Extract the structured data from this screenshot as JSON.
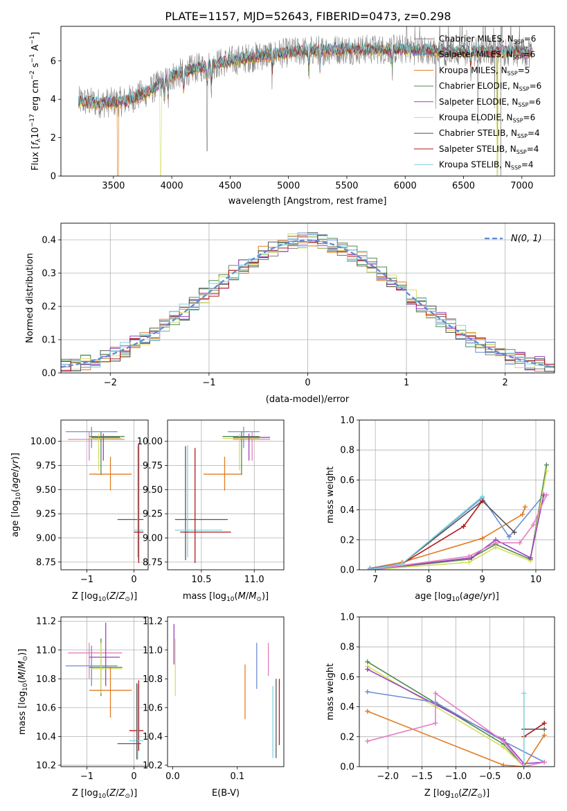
{
  "figure_title": "PLATE=1157, MJD=52643, FIBERID=0473, z=0.298",
  "colors": {
    "Chabrier MILES": "#7f7f7f",
    "Salpeter MILES": "#6b8ed6",
    "Kroupa MILES": "#e07b22",
    "Chabrier ELODIE": "#4e8a4e",
    "Salpeter ELODIE": "#9b3fc0",
    "Kroupa ELODIE": "#d4de5a",
    "Chabrier STELIB": "#555555",
    "Salpeter STELIB": "#b5161c",
    "Kroupa STELIB": "#7fd3db",
    "pink": "#e37fbf",
    "gauss": "#5b8bd6",
    "grid": "#b0b0b0"
  },
  "chart_data": [
    {
      "id": "spectrum",
      "type": "line",
      "xlabel": "wavelength [Angstrom, rest frame]",
      "ylabel": "Flux [f_λ 10^-17 erg cm^-2 s^-1 A^-1]",
      "xlim": [
        3050,
        7280
      ],
      "ylim": [
        0,
        7.8
      ],
      "xticks": [
        3500,
        4000,
        4500,
        5000,
        5500,
        6000,
        6500,
        7000
      ],
      "yticks": [
        0,
        2,
        4,
        6
      ],
      "grid": false,
      "legend_position": "right",
      "legend": [
        {
          "name": "Chabrier MILES",
          "ssp": "6"
        },
        {
          "name": "Salpeter MILES",
          "ssp": "6"
        },
        {
          "name": "Kroupa MILES",
          "ssp": "5"
        },
        {
          "name": "Chabrier ELODIE",
          "ssp": "6"
        },
        {
          "name": "Salpeter ELODIE",
          "ssp": "6"
        },
        {
          "name": "Kroupa ELODIE",
          "ssp": "6"
        },
        {
          "name": "Chabrier STELIB",
          "ssp": "4"
        },
        {
          "name": "Salpeter STELIB",
          "ssp": "4"
        },
        {
          "name": "Kroupa STELIB",
          "ssp": "4"
        }
      ],
      "continuum": {
        "x": [
          3200,
          3400,
          3600,
          3800,
          4000,
          4200,
          4500,
          4800,
          5100,
          5400,
          5700,
          6000,
          6300,
          6600,
          6900,
          7100
        ],
        "y": [
          3.9,
          3.8,
          3.9,
          4.4,
          5.2,
          5.6,
          6.0,
          6.3,
          6.5,
          6.6,
          6.6,
          6.6,
          6.5,
          6.5,
          6.5,
          6.4
        ]
      }
    },
    {
      "id": "residuals",
      "type": "line",
      "xlabel": "(data-model)/error",
      "ylabel": "Normed distribution",
      "xlim": [
        -2.5,
        2.5
      ],
      "ylim": [
        0,
        0.45
      ],
      "xticks": [
        -2,
        -1,
        0,
        1,
        2
      ],
      "yticks": [
        0.0,
        0.1,
        0.2,
        0.3,
        0.4
      ],
      "grid": true,
      "legend_position": "top-right",
      "gauss_label": "N(0,1)"
    },
    {
      "id": "age_vs_Z",
      "type": "scatter",
      "xlabel": "Z [log10(Z/Z_sun)]",
      "ylabel": "age  [log10(age/yr)]",
      "xlim": [
        -1.55,
        0.3
      ],
      "ylim": [
        8.67,
        10.22
      ],
      "xticks": [
        -1,
        0
      ],
      "yticks": [
        8.75,
        9.0,
        9.25,
        9.5,
        9.75,
        10.0
      ],
      "grid": true,
      "points": [
        {
          "c": "#6b8ed6",
          "x": -0.9,
          "xe": [
            -1.45,
            -0.35
          ],
          "y": 10.1,
          "ye": [
            9.93,
            10.15
          ]
        },
        {
          "c": "#e37fbf",
          "x": -0.95,
          "xe": [
            -1.4,
            -0.2
          ],
          "y": 10.02,
          "ye": [
            9.8,
            10.1
          ]
        },
        {
          "c": "#4e8a4e",
          "x": -0.7,
          "xe": [
            -0.95,
            -0.2
          ],
          "y": 10.05,
          "ye": [
            9.65,
            10.1
          ]
        },
        {
          "c": "#d4de5a",
          "x": -0.75,
          "xe": [
            -0.95,
            -0.25
          ],
          "y": 10.03,
          "ye": [
            9.7,
            10.08
          ]
        },
        {
          "c": "#9b3fc0",
          "x": -0.65,
          "xe": [
            -0.9,
            -0.3
          ],
          "y": 10.04,
          "ye": [
            9.8,
            10.08
          ]
        },
        {
          "c": "#e07b22",
          "x": -0.5,
          "xe": [
            -0.95,
            -0.05
          ],
          "y": 9.66,
          "ye": [
            9.49,
            9.84
          ]
        },
        {
          "c": "#555555",
          "x": 0.1,
          "xe": [
            -0.35,
            0.2
          ],
          "y": 9.19,
          "ye": [
            8.77,
            9.95
          ]
        },
        {
          "c": "#7fd3db",
          "x": 0.08,
          "xe": [
            0.0,
            0.2
          ],
          "y": 9.08,
          "ye": [
            8.8,
            9.96
          ]
        },
        {
          "c": "#b5161c",
          "x": 0.1,
          "xe": [
            0.0,
            0.2
          ],
          "y": 9.06,
          "ye": [
            8.74,
            9.97
          ]
        }
      ]
    },
    {
      "id": "age_vs_mass",
      "type": "scatter",
      "xlabel": "mass [log10(M/M_sun)]",
      "ylabel": "",
      "xlim": [
        10.18,
        11.28
      ],
      "ylim": [
        8.67,
        10.22
      ],
      "xticks": [
        10.5,
        11.0
      ],
      "yticks": [
        8.75,
        9.0,
        9.25,
        9.5,
        9.75,
        10.0
      ],
      "grid": true,
      "points": [
        {
          "c": "#6b8ed6",
          "x": 10.9,
          "xe": [
            10.75,
            11.05
          ],
          "y": 10.1,
          "ye": [
            9.93,
            10.15
          ]
        },
        {
          "c": "#e37fbf",
          "x": 10.98,
          "xe": [
            10.8,
            11.15
          ],
          "y": 10.02,
          "ye": [
            9.8,
            10.1
          ]
        },
        {
          "c": "#4e8a4e",
          "x": 10.88,
          "xe": [
            10.7,
            11.05
          ],
          "y": 10.05,
          "ye": [
            9.65,
            10.1
          ]
        },
        {
          "c": "#d4de5a",
          "x": 10.86,
          "xe": [
            10.7,
            11.05
          ],
          "y": 10.03,
          "ye": [
            9.7,
            10.08
          ]
        },
        {
          "c": "#9b3fc0",
          "x": 10.95,
          "xe": [
            10.8,
            11.15
          ],
          "y": 10.04,
          "ye": [
            9.8,
            10.08
          ]
        },
        {
          "c": "#e07b22",
          "x": 10.72,
          "xe": [
            10.52,
            10.88
          ],
          "y": 9.66,
          "ye": [
            9.49,
            9.84
          ]
        },
        {
          "c": "#555555",
          "x": 10.35,
          "xe": [
            10.25,
            10.75
          ],
          "y": 9.19,
          "ye": [
            8.77,
            9.95
          ]
        },
        {
          "c": "#7fd3db",
          "x": 10.37,
          "xe": [
            10.25,
            10.7
          ],
          "y": 9.08,
          "ye": [
            8.8,
            9.96
          ]
        },
        {
          "c": "#b5161c",
          "x": 10.44,
          "xe": [
            10.3,
            10.78
          ],
          "y": 9.06,
          "ye": [
            8.74,
            9.93
          ]
        }
      ]
    },
    {
      "id": "mass_weight_vs_age",
      "type": "line",
      "xlabel": "age  [log10(age/yr)]",
      "ylabel": "mass weight",
      "xlim": [
        6.7,
        10.35
      ],
      "ylim": [
        0,
        1.0
      ],
      "xticks": [
        7,
        8,
        9,
        10
      ],
      "yticks": [
        0.0,
        0.2,
        0.4,
        0.6,
        0.8,
        1.0
      ],
      "grid": true,
      "series": [
        {
          "c": "#e07b22",
          "x": [
            6.9,
            7.5,
            9.0,
            9.75,
            9.8
          ],
          "y": [
            0.01,
            0.05,
            0.21,
            0.37,
            0.42
          ]
        },
        {
          "c": "#6b8ed6",
          "x": [
            6.9,
            7.5,
            9.0,
            9.5,
            10.15
          ],
          "y": [
            0.01,
            0.04,
            0.48,
            0.22,
            0.5
          ]
        },
        {
          "c": "#555555",
          "x": [
            6.9,
            7.5,
            9.0,
            9.6
          ],
          "y": [
            0.0,
            0.04,
            0.46,
            0.25
          ]
        },
        {
          "c": "#b5161c",
          "x": [
            6.9,
            7.5,
            8.65,
            9.0
          ],
          "y": [
            0.0,
            0.04,
            0.29,
            0.46
          ]
        },
        {
          "c": "#4e8a4e",
          "x": [
            6.9,
            8.75,
            9.25,
            9.9,
            10.2
          ],
          "y": [
            0.0,
            0.07,
            0.17,
            0.07,
            0.7
          ]
        },
        {
          "c": "#d4de5a",
          "x": [
            6.9,
            8.75,
            9.25,
            9.9,
            10.2
          ],
          "y": [
            0.0,
            0.05,
            0.15,
            0.06,
            0.66
          ]
        },
        {
          "c": "#9b3fc0",
          "x": [
            6.9,
            8.8,
            9.25,
            9.9,
            10.15
          ],
          "y": [
            0.0,
            0.08,
            0.2,
            0.08,
            0.5
          ]
        },
        {
          "c": "#e37fbf",
          "x": [
            6.9,
            8.75,
            9.25,
            9.7,
            9.95,
            10.2
          ],
          "y": [
            0.0,
            0.09,
            0.18,
            0.18,
            0.3,
            0.5
          ]
        },
        {
          "c": "#7fd3db",
          "x": [
            6.9,
            7.5,
            9.0
          ],
          "y": [
            0.0,
            0.04,
            0.49
          ]
        }
      ]
    },
    {
      "id": "mass_vs_Z",
      "type": "scatter",
      "xlabel": "Z [log10(Z/Z_sun)]",
      "ylabel": "mass [log10(M/M_sun)]",
      "xlim": [
        -1.55,
        0.3
      ],
      "ylim": [
        10.19,
        11.23
      ],
      "xticks": [
        -1,
        0
      ],
      "yticks": [
        10.2,
        10.4,
        10.6,
        10.8,
        11.0,
        11.2
      ],
      "grid": true,
      "points": [
        {
          "c": "#6b8ed6",
          "x": -0.9,
          "xe": [
            -1.45,
            -0.35
          ],
          "y": 10.89,
          "ye": [
            10.75,
            11.03
          ]
        },
        {
          "c": "#e37fbf",
          "x": -0.95,
          "xe": [
            -1.4,
            -0.25
          ],
          "y": 10.98,
          "ye": [
            10.8,
            11.05
          ]
        },
        {
          "c": "#9b3fc0",
          "x": -0.6,
          "xe": [
            -0.95,
            -0.3
          ],
          "y": 10.95,
          "ye": [
            10.75,
            11.19
          ]
        },
        {
          "c": "#4e8a4e",
          "x": -0.7,
          "xe": [
            -0.95,
            -0.25
          ],
          "y": 10.88,
          "ye": [
            10.68,
            11.08
          ]
        },
        {
          "c": "#d4de5a",
          "x": -0.7,
          "xe": [
            -0.9,
            -0.25
          ],
          "y": 10.87,
          "ye": [
            10.7,
            11.05
          ]
        },
        {
          "c": "#e07b22",
          "x": -0.5,
          "xe": [
            -0.95,
            -0.05
          ],
          "y": 10.72,
          "ye": [
            10.53,
            10.88
          ]
        },
        {
          "c": "#b5161c",
          "x": 0.1,
          "xe": [
            -0.1,
            0.2
          ],
          "y": 10.44,
          "ye": [
            10.3,
            10.79
          ]
        },
        {
          "c": "#7fd3db",
          "x": 0.08,
          "xe": [
            -0.1,
            0.2
          ],
          "y": 10.37,
          "ye": [
            10.24,
            10.76
          ]
        },
        {
          "c": "#555555",
          "x": 0.06,
          "xe": [
            -0.35,
            0.15
          ],
          "y": 10.35,
          "ye": [
            10.24,
            10.77
          ]
        }
      ]
    },
    {
      "id": "mass_vs_EBV",
      "type": "scatter",
      "xlabel": "E(B-V)",
      "ylabel": "",
      "xlim": [
        -0.008,
        0.172
      ],
      "ylim": [
        10.19,
        11.23
      ],
      "xticks": [
        0.0,
        0.1
      ],
      "yticks": [
        10.2,
        10.4,
        10.6,
        10.8,
        11.0,
        11.2
      ],
      "grid": false,
      "points": [
        {
          "c": "#9b3fc0",
          "x": 0.002,
          "y": 11.04,
          "ye": [
            10.9,
            11.18
          ]
        },
        {
          "c": "#d4de5a",
          "x": 0.004,
          "y": 10.87,
          "ye": [
            10.68,
            11.08
          ]
        },
        {
          "c": "#6b8ed6",
          "x": 0.13,
          "y": 10.88,
          "ye": [
            10.73,
            11.05
          ]
        },
        {
          "c": "#e07b22",
          "x": 0.112,
          "y": 10.72,
          "ye": [
            10.52,
            10.9
          ]
        },
        {
          "c": "#e37fbf",
          "x": 0.148,
          "y": 10.98,
          "ye": [
            10.82,
            11.05
          ]
        },
        {
          "c": "#b5161c",
          "x": 0.165,
          "y": 10.6,
          "ye": [
            10.34,
            10.8
          ]
        },
        {
          "c": "#555555",
          "x": 0.16,
          "y": 10.55,
          "ye": [
            10.25,
            10.8
          ]
        },
        {
          "c": "#7fd3db",
          "x": 0.155,
          "y": 10.45,
          "ye": [
            10.25,
            10.75
          ]
        }
      ]
    },
    {
      "id": "mass_weight_vs_Z",
      "type": "line",
      "xlabel": "Z [log10(Z/Z_sun)]",
      "ylabel": "mass weight",
      "xlim": [
        -2.42,
        0.45
      ],
      "ylim": [
        0,
        1.0
      ],
      "xticks": [
        -2.0,
        -1.5,
        -1.0,
        -0.5,
        0.0
      ],
      "yticks": [
        0.0,
        0.2,
        0.4,
        0.6,
        0.8,
        1.0
      ],
      "grid": true,
      "series": [
        {
          "c": "#4e8a4e",
          "x": [
            -2.3,
            -0.3,
            0.0
          ],
          "y": [
            0.7,
            0.15,
            0.0
          ]
        },
        {
          "c": "#d4de5a",
          "x": [
            -2.3,
            -0.3,
            0.0
          ],
          "y": [
            0.67,
            0.13,
            0.0
          ]
        },
        {
          "c": "#9b3fc0",
          "x": [
            -2.3,
            -0.3,
            0.0,
            0.3
          ],
          "y": [
            0.65,
            0.18,
            0.02,
            0.03
          ]
        },
        {
          "c": "#6b8ed6",
          "x": [
            -2.3,
            -1.3,
            -0.3,
            0.3
          ],
          "y": [
            0.5,
            0.43,
            0.17,
            0.03
          ]
        },
        {
          "c": "#e07b22",
          "x": [
            -2.3,
            -0.3,
            0.0,
            0.3
          ],
          "y": [
            0.37,
            0.01,
            0.0,
            0.21
          ]
        },
        {
          "c": "#e37fbf",
          "x": [
            -2.3,
            -1.3,
            -1.3,
            -0.3,
            0.0,
            0.3
          ],
          "y": [
            0.17,
            0.29,
            0.49,
            0.17,
            0.0,
            0.03
          ]
        },
        {
          "c": "#b5161c",
          "x": [
            0.0,
            0.3
          ],
          "y": [
            0.2,
            0.29
          ]
        },
        {
          "c": "#555555",
          "x": [
            0.0,
            0.3
          ],
          "y": [
            0.25,
            0.25
          ]
        },
        {
          "c": "#7fd3db",
          "x": [
            0.0,
            0.0
          ],
          "y": [
            0.0,
            0.49
          ]
        }
      ]
    }
  ]
}
